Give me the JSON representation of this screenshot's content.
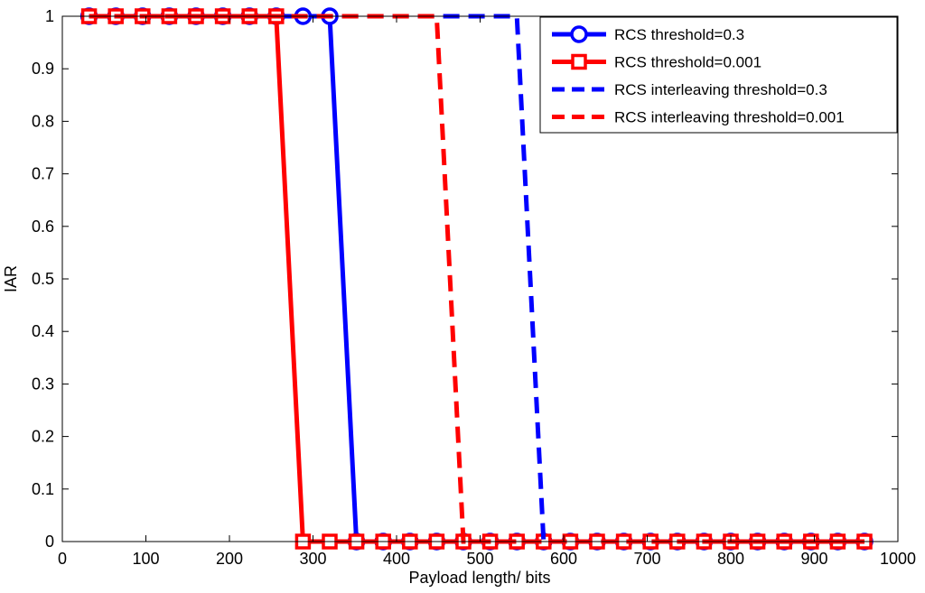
{
  "chart_data": {
    "type": "line",
    "title": "",
    "xlabel": "Payload length/ bits",
    "ylabel": "IAR",
    "xlim": [
      0,
      1000
    ],
    "ylim": [
      0,
      1
    ],
    "xticks": [
      "0",
      "100",
      "200",
      "300",
      "400",
      "500",
      "600",
      "700",
      "800",
      "900",
      "1000"
    ],
    "yticks": [
      "0",
      "0.1",
      "0.2",
      "0.3",
      "0.4",
      "0.5",
      "0.6",
      "0.7",
      "0.8",
      "0.9",
      "1"
    ],
    "grid": false,
    "legend_position": "top-right",
    "x": [
      32,
      64,
      96,
      128,
      160,
      192,
      224,
      256,
      288,
      320,
      352,
      384,
      416,
      448,
      480,
      512,
      544,
      576,
      608,
      640,
      672,
      704,
      736,
      768,
      800,
      832,
      864,
      896,
      928,
      960
    ],
    "series": [
      {
        "name": "RCS threshold=0.3",
        "color": "#0000ff",
        "style": "solid",
        "marker": "circle",
        "values": [
          1,
          1,
          1,
          1,
          1,
          1,
          1,
          1,
          1,
          1,
          0,
          0,
          0,
          0,
          0,
          0,
          0,
          0,
          0,
          0,
          0,
          0,
          0,
          0,
          0,
          0,
          0,
          0,
          0,
          0
        ]
      },
      {
        "name": "RCS threshold=0.001",
        "color": "#ff0000",
        "style": "solid",
        "marker": "square",
        "values": [
          1,
          1,
          1,
          1,
          1,
          1,
          1,
          1,
          0,
          0,
          0,
          0,
          0,
          0,
          0,
          0,
          0,
          0,
          0,
          0,
          0,
          0,
          0,
          0,
          0,
          0,
          0,
          0,
          0,
          0
        ]
      },
      {
        "name": "RCS interleaving threshold=0.3",
        "color": "#0000ff",
        "style": "dashed",
        "marker": "none",
        "values": [
          1,
          1,
          1,
          1,
          1,
          1,
          1,
          1,
          1,
          1,
          1,
          1,
          1,
          1,
          1,
          1,
          1,
          0,
          0,
          0,
          0,
          0,
          0,
          0,
          0,
          0,
          0,
          0,
          0,
          0
        ]
      },
      {
        "name": "RCS interleaving threshold=0.001",
        "color": "#ff0000",
        "style": "dashed",
        "marker": "none",
        "values": [
          1,
          1,
          1,
          1,
          1,
          1,
          1,
          1,
          1,
          1,
          1,
          1,
          1,
          1,
          0,
          0,
          0,
          0,
          0,
          0,
          0,
          0,
          0,
          0,
          0,
          0,
          0,
          0,
          0,
          0
        ]
      }
    ]
  }
}
